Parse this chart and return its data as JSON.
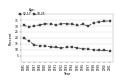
{
  "years": [
    1985,
    1986,
    1987,
    1988,
    1989,
    1990,
    1991,
    1992,
    1993,
    1994,
    1995,
    1996,
    1997,
    1998,
    1999,
    2000,
    2001
  ],
  "series": [
    {
      "label": "18-25",
      "color": "#444444",
      "marker": "s",
      "values": [
        30.5,
        29.5,
        30.0,
        31.0,
        32.0,
        31.5,
        31.0,
        32.0,
        32.0,
        31.5,
        30.5,
        31.5,
        30.0,
        33.0,
        33.5,
        34.0,
        34.5
      ]
    },
    {
      "label": "12-17",
      "color": "#444444",
      "marker": "s",
      "values": [
        20.0,
        17.5,
        14.0,
        13.5,
        13.0,
        12.5,
        12.0,
        11.5,
        12.0,
        12.5,
        11.5,
        11.0,
        10.5,
        10.0,
        9.5,
        9.5,
        9.0
      ]
    }
  ],
  "xlabel": "Year",
  "ylabel": "Percent",
  "ylim": [
    0,
    40
  ],
  "yticks": [
    5,
    10,
    15,
    20,
    25,
    30,
    35
  ],
  "legend_title": "Age:",
  "legend_labels": [
    "12-17",
    "18-25"
  ],
  "background_color": "#ffffff",
  "line_style": "--",
  "linewidth": 0.6,
  "markersize": 1.8,
  "grid_color": "#dddddd",
  "spine_color": "#aaaaaa"
}
